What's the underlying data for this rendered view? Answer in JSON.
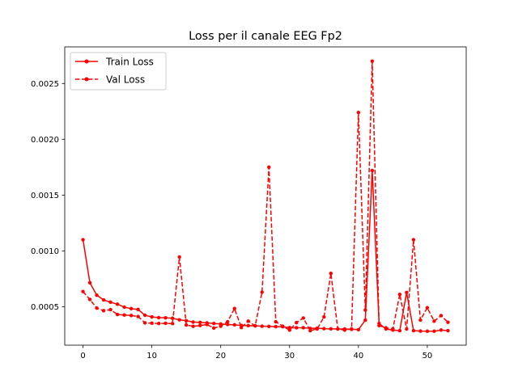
{
  "chart_data": {
    "type": "line",
    "title": "Loss per il canale EEG Fp2",
    "xlabel": "",
    "ylabel": "",
    "xlim": [
      -2.65,
      55.65
    ],
    "ylim": [
      0.000155,
      0.002828
    ],
    "xticks": [
      0,
      10,
      20,
      30,
      40,
      50
    ],
    "yticks": [
      0.0005,
      0.001,
      0.0015,
      0.002,
      0.0025
    ],
    "xtick_labels": [
      "0",
      "10",
      "20",
      "30",
      "40",
      "50"
    ],
    "ytick_labels": [
      "0.0005",
      "0.0010",
      "0.0015",
      "0.0020",
      "0.0025"
    ],
    "grid": false,
    "legend_position": "top-left",
    "x": [
      0,
      1,
      2,
      3,
      4,
      5,
      6,
      7,
      8,
      9,
      10,
      11,
      12,
      13,
      14,
      15,
      16,
      17,
      18,
      19,
      20,
      21,
      22,
      23,
      24,
      25,
      26,
      27,
      28,
      29,
      30,
      31,
      32,
      33,
      34,
      35,
      36,
      37,
      38,
      39,
      40,
      41,
      42,
      43,
      44,
      45,
      46,
      47,
      48,
      49,
      50,
      51,
      52,
      53
    ],
    "series": [
      {
        "name": "Train Loss",
        "color": "#ff0000",
        "linestyle": "solid",
        "values": [
          0.0011,
          0.000714,
          0.000603,
          0.00056,
          0.00054,
          0.000522,
          0.000496,
          0.000482,
          0.000475,
          0.000423,
          0.000408,
          0.000402,
          0.0004,
          0.000396,
          0.000382,
          0.000374,
          0.000362,
          0.000359,
          0.000355,
          0.000349,
          0.000345,
          0.00034,
          0.000337,
          0.000332,
          0.00033,
          0.000328,
          0.000325,
          0.000323,
          0.000321,
          0.00032,
          0.000312,
          0.000311,
          0.000311,
          0.000305,
          0.000307,
          0.000303,
          0.000301,
          0.0003,
          0.0003,
          0.000297,
          0.000294,
          0.000379,
          0.00172,
          0.000349,
          0.0003,
          0.00029,
          0.000285,
          0.000627,
          0.000285,
          0.000281,
          0.00028,
          0.00028,
          0.00029,
          0.000285
        ]
      },
      {
        "name": "Val Loss",
        "color": "#ff0000",
        "linestyle": "dashed",
        "values": [
          0.000635,
          0.000565,
          0.000487,
          0.000464,
          0.000473,
          0.00043,
          0.000425,
          0.000421,
          0.000412,
          0.000355,
          0.000352,
          0.000349,
          0.000351,
          0.000348,
          0.000945,
          0.000336,
          0.000324,
          0.000331,
          0.00034,
          0.000308,
          0.000325,
          0.000365,
          0.000483,
          0.000313,
          0.00037,
          0.000328,
          0.00063,
          0.00175,
          0.000365,
          0.000325,
          0.00029,
          0.000357,
          0.000398,
          0.000285,
          0.0003,
          0.000408,
          0.000798,
          0.0003,
          0.00029,
          0.0003,
          0.00224,
          0.00047,
          0.0027,
          0.00033,
          0.00031,
          0.0003,
          0.00061,
          0.0003,
          0.0011,
          0.00038,
          0.00049,
          0.00037,
          0.00042,
          0.00036
        ]
      }
    ]
  }
}
